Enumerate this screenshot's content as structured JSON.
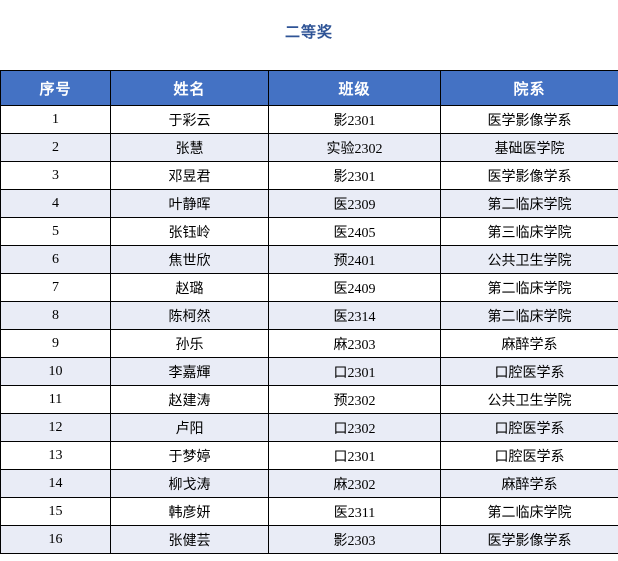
{
  "page": {
    "title": "二等奖"
  },
  "colors": {
    "header_bg": "#4472C4",
    "header_text": "#FFFFFF",
    "banded_row_bg": "#E9ECF6",
    "title_text": "#2F5496",
    "border": "#000000"
  },
  "table": {
    "columns": [
      "序号",
      "姓名",
      "班级",
      "院系"
    ],
    "column_keys": [
      "row-number",
      "name",
      "class",
      "department"
    ],
    "rows": [
      [
        "1",
        "于彩云",
        "影2301",
        "医学影像学系"
      ],
      [
        "2",
        "张慧",
        "实验2302",
        "基础医学院"
      ],
      [
        "3",
        "邓昱君",
        "影2301",
        "医学影像学系"
      ],
      [
        "4",
        "叶静晖",
        "医2309",
        "第二临床学院"
      ],
      [
        "5",
        "张钰岭",
        "医2405",
        "第三临床学院"
      ],
      [
        "6",
        "焦世欣",
        "预2401",
        "公共卫生学院"
      ],
      [
        "7",
        "赵璐",
        "医2409",
        "第二临床学院"
      ],
      [
        "8",
        "陈柯然",
        "医2314",
        "第二临床学院"
      ],
      [
        "9",
        "孙乐",
        "麻2303",
        "麻醉学系"
      ],
      [
        "10",
        "李嘉輝",
        "口2301",
        "口腔医学系"
      ],
      [
        "11",
        "赵建涛",
        "预2302",
        "公共卫生学院"
      ],
      [
        "12",
        "卢阳",
        "口2302",
        "口腔医学系"
      ],
      [
        "13",
        "于梦婷",
        "口2301",
        "口腔医学系"
      ],
      [
        "14",
        "柳戈涛",
        "麻2302",
        "麻醉学系"
      ],
      [
        "15",
        "韩彦妍",
        "医2311",
        "第二临床学院"
      ],
      [
        "16",
        "张健芸",
        "影2303",
        "医学影像学系"
      ]
    ]
  }
}
